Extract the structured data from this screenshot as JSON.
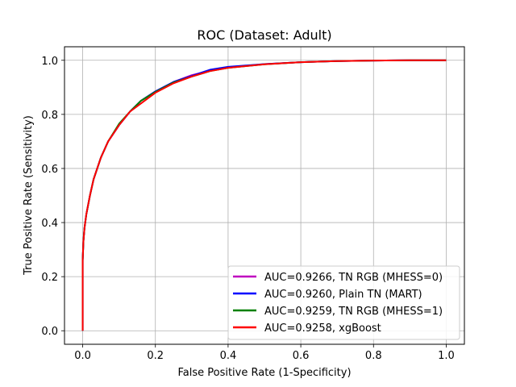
{
  "chart_data": {
    "type": "line",
    "title": "ROC (Dataset: Adult)",
    "xlabel": "False Positive Rate (1-Specificity)",
    "ylabel": "True Positive Rate (Sensitivity)",
    "xlim": [
      -0.05,
      1.05
    ],
    "ylim": [
      -0.05,
      1.05
    ],
    "xticks": [
      0.0,
      0.2,
      0.4,
      0.6,
      0.8,
      1.0
    ],
    "yticks": [
      0.0,
      0.2,
      0.4,
      0.6,
      0.8,
      1.0
    ],
    "xtick_labels": [
      "0.0",
      "0.2",
      "0.4",
      "0.6",
      "0.8",
      "1.0"
    ],
    "ytick_labels": [
      "0.0",
      "0.2",
      "0.4",
      "0.6",
      "0.8",
      "1.0"
    ],
    "grid": true,
    "legend_position": "bottom-right",
    "series": [
      {
        "name": "AUC=0.9266, TN RGB (MHESS=0)",
        "color": "#bf00bf",
        "x": [
          0,
          0,
          0.002,
          0.005,
          0.01,
          0.02,
          0.03,
          0.05,
          0.07,
          0.1,
          0.13,
          0.16,
          0.2,
          0.25,
          0.3,
          0.35,
          0.4,
          0.5,
          0.6,
          0.7,
          0.8,
          0.9,
          1.0
        ],
        "y": [
          0,
          0.26,
          0.33,
          0.38,
          0.43,
          0.5,
          0.56,
          0.64,
          0.7,
          0.76,
          0.81,
          0.85,
          0.885,
          0.92,
          0.945,
          0.962,
          0.973,
          0.986,
          0.993,
          0.997,
          0.999,
          1.0,
          1.0
        ]
      },
      {
        "name": "AUC=0.9260, Plain TN (MART)",
        "color": "#0000ff",
        "x": [
          0,
          0,
          0.002,
          0.005,
          0.01,
          0.02,
          0.03,
          0.05,
          0.07,
          0.1,
          0.13,
          0.16,
          0.2,
          0.25,
          0.3,
          0.35,
          0.4,
          0.5,
          0.6,
          0.7,
          0.8,
          0.9,
          1.0
        ],
        "y": [
          0,
          0.26,
          0.33,
          0.38,
          0.43,
          0.5,
          0.56,
          0.64,
          0.7,
          0.76,
          0.81,
          0.85,
          0.885,
          0.92,
          0.942,
          0.965,
          0.976,
          0.986,
          0.993,
          0.997,
          0.999,
          1.0,
          1.0
        ]
      },
      {
        "name": "AUC=0.9259, TN RGB (MHESS=1)",
        "color": "#008000",
        "x": [
          0,
          0,
          0.002,
          0.005,
          0.01,
          0.02,
          0.03,
          0.05,
          0.07,
          0.1,
          0.13,
          0.16,
          0.2,
          0.25,
          0.3,
          0.35,
          0.4,
          0.5,
          0.6,
          0.7,
          0.8,
          0.9,
          1.0
        ],
        "y": [
          0,
          0.26,
          0.33,
          0.38,
          0.43,
          0.5,
          0.56,
          0.64,
          0.7,
          0.765,
          0.81,
          0.85,
          0.883,
          0.918,
          0.94,
          0.96,
          0.972,
          0.985,
          0.993,
          0.997,
          0.999,
          1.0,
          1.0
        ]
      },
      {
        "name": "AUC=0.9258, xgBoost",
        "color": "#ff0000",
        "x": [
          0,
          0,
          0.002,
          0.005,
          0.01,
          0.02,
          0.03,
          0.05,
          0.07,
          0.1,
          0.13,
          0.16,
          0.2,
          0.25,
          0.3,
          0.35,
          0.4,
          0.5,
          0.6,
          0.7,
          0.8,
          0.9,
          1.0
        ],
        "y": [
          0,
          0.26,
          0.33,
          0.38,
          0.43,
          0.5,
          0.56,
          0.64,
          0.7,
          0.76,
          0.81,
          0.84,
          0.88,
          0.915,
          0.94,
          0.96,
          0.972,
          0.985,
          0.993,
          0.997,
          0.999,
          1.0,
          1.0
        ]
      }
    ]
  }
}
